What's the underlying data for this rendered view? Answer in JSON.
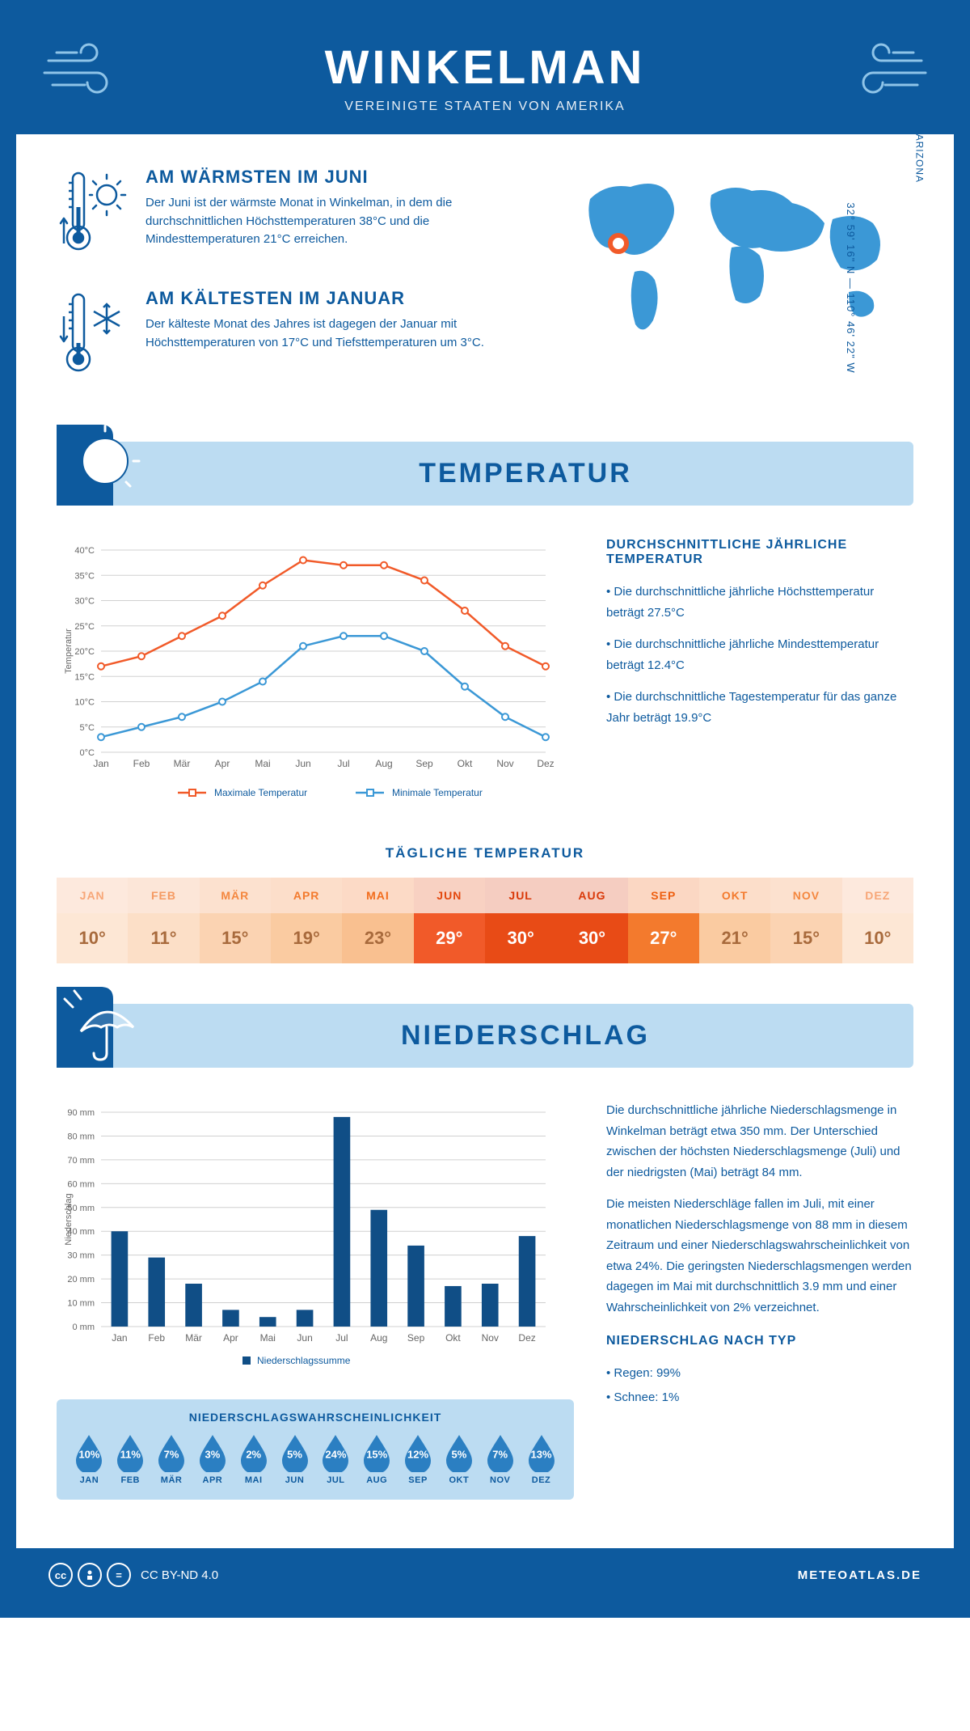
{
  "colors": {
    "primary": "#0d5a9e",
    "banner": "#bcdcf2",
    "accent_orange": "#f15a29",
    "accent_blue": "#3b98d6",
    "white": "#ffffff",
    "grid": "#d0d0d0"
  },
  "header": {
    "title": "WINKELMAN",
    "subtitle": "VEREINIGTE STAATEN VON AMERIKA"
  },
  "intro": {
    "warm": {
      "title": "AM WÄRMSTEN IM JUNI",
      "text": "Der Juni ist der wärmste Monat in Winkelman, in dem die durchschnittlichen Höchsttemperaturen 38°C und die Mindesttemperaturen 21°C erreichen."
    },
    "cold": {
      "title": "AM KÄLTESTEN IM JANUAR",
      "text": "Der kälteste Monat des Jahres ist dagegen der Januar mit Höchsttemperaturen von 17°C und Tiefsttemperaturen um 3°C."
    },
    "region": "ARIZONA",
    "coords": "32° 59' 16\" N  —  110° 46' 22\" W"
  },
  "sections": {
    "temperature": "TEMPERATUR",
    "precipitation": "NIEDERSCHLAG"
  },
  "months": [
    "Jan",
    "Feb",
    "Mär",
    "Apr",
    "Mai",
    "Jun",
    "Jul",
    "Aug",
    "Sep",
    "Okt",
    "Nov",
    "Dez"
  ],
  "months_upper": [
    "JAN",
    "FEB",
    "MÄR",
    "APR",
    "MAI",
    "JUN",
    "JUL",
    "AUG",
    "SEP",
    "OKT",
    "NOV",
    "DEZ"
  ],
  "temp_chart": {
    "ylabel": "Temperatur",
    "ylim": [
      0,
      40
    ],
    "ytick_step": 5,
    "y_unit": "°C",
    "max_series": {
      "label": "Maximale Temperatur",
      "color": "#f15a29",
      "values": [
        17,
        19,
        23,
        27,
        33,
        38,
        37,
        37,
        34,
        28,
        21,
        17
      ]
    },
    "min_series": {
      "label": "Minimale Temperatur",
      "color": "#3b98d6",
      "values": [
        3,
        5,
        7,
        10,
        14,
        21,
        23,
        23,
        20,
        13,
        7,
        3
      ]
    },
    "background_color": "#ffffff",
    "grid_color": "#d0d0d0",
    "line_width": 2.5,
    "marker_size": 4
  },
  "temp_summary": {
    "title": "DURCHSCHNITTLICHE JÄHRLICHE TEMPERATUR",
    "bullets": [
      "• Die durchschnittliche jährliche Höchsttemperatur beträgt 27.5°C",
      "• Die durchschnittliche jährliche Mindesttemperatur beträgt 12.4°C",
      "• Die durchschnittliche Tagestemperatur für das ganze Jahr beträgt 19.9°C"
    ]
  },
  "daily_temp": {
    "title": "TÄGLICHE TEMPERATUR",
    "values": [
      "10°",
      "11°",
      "15°",
      "19°",
      "23°",
      "29°",
      "30°",
      "30°",
      "27°",
      "21°",
      "15°",
      "10°"
    ],
    "label_colors": [
      "#f7a677",
      "#f59a62",
      "#f4873f",
      "#f37a2d",
      "#f26c1c",
      "#e3480d",
      "#d93808",
      "#d93808",
      "#ee5f10",
      "#f37a2d",
      "#f4873f",
      "#f7a677"
    ],
    "bg_colors": [
      "#fde7d5",
      "#fcdfc7",
      "#fbd3b2",
      "#facba1",
      "#f9c090",
      "#f15a29",
      "#e84b16",
      "#e84b16",
      "#f37a2d",
      "#facba1",
      "#fbd3b2",
      "#fde7d5"
    ],
    "text_colors": [
      "#a86a3c",
      "#a86a3c",
      "#a86a3c",
      "#a86a3c",
      "#a86a3c",
      "#ffffff",
      "#ffffff",
      "#ffffff",
      "#ffffff",
      "#a86a3c",
      "#a86a3c",
      "#a86a3c"
    ]
  },
  "precip_chart": {
    "ylabel": "Niederschlag",
    "ylim": [
      0,
      90
    ],
    "ytick_step": 10,
    "y_unit": " mm",
    "values": [
      40,
      29,
      18,
      7,
      4,
      7,
      88,
      49,
      34,
      17,
      18,
      38
    ],
    "bar_color": "#104e86",
    "legend": "Niederschlagssumme",
    "bar_width": 0.45,
    "grid_color": "#d0d0d0"
  },
  "precip_text": {
    "p1": "Die durchschnittliche jährliche Niederschlagsmenge in Winkelman beträgt etwa 350 mm. Der Unterschied zwischen der höchsten Niederschlagsmenge (Juli) und der niedrigsten (Mai) beträgt 84 mm.",
    "p2": "Die meisten Niederschläge fallen im Juli, mit einer monatlichen Niederschlagsmenge von 88 mm in diesem Zeitraum und einer Niederschlagswahrscheinlichkeit von etwa 24%. Die geringsten Niederschlagsmengen werden dagegen im Mai mit durchschnittlich 3.9 mm und einer Wahrscheinlichkeit von 2% verzeichnet.",
    "type_title": "NIEDERSCHLAG NACH TYP",
    "type_bullets": [
      "• Regen: 99%",
      "• Schnee: 1%"
    ]
  },
  "prob": {
    "title": "NIEDERSCHLAGSWAHRSCHEINLICHKEIT",
    "values": [
      "10%",
      "11%",
      "7%",
      "3%",
      "2%",
      "5%",
      "24%",
      "15%",
      "12%",
      "5%",
      "7%",
      "13%"
    ],
    "drop_color": "#2b7fc2"
  },
  "footer": {
    "license": "CC BY-ND 4.0",
    "site": "METEOATLAS.DE"
  }
}
